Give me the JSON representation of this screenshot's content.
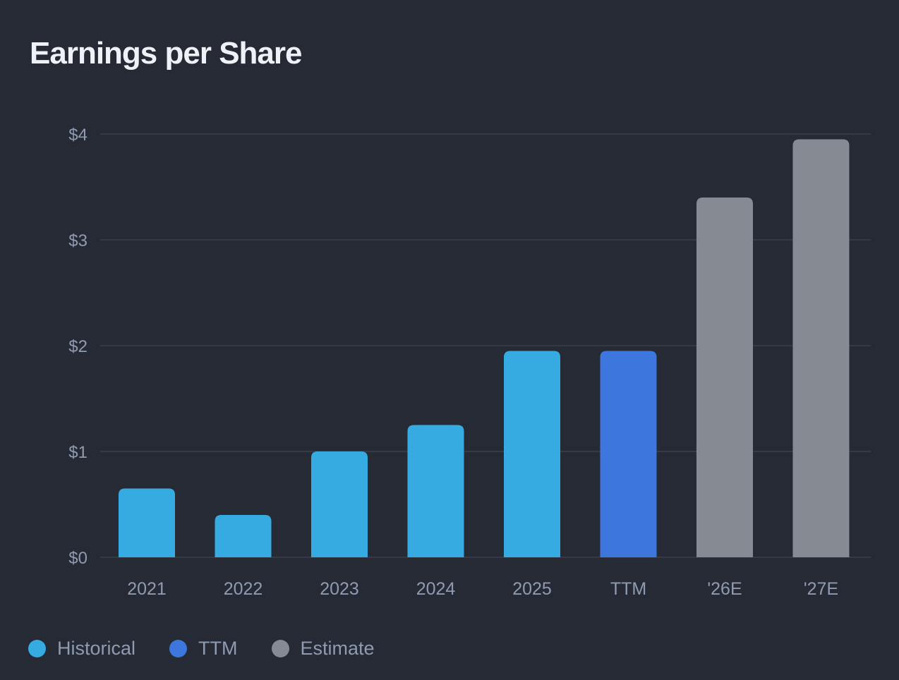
{
  "chart_data": {
    "type": "bar",
    "title": "Earnings per Share",
    "categories": [
      "2021",
      "2022",
      "2023",
      "2024",
      "2025",
      "TTM",
      "'26E",
      "'27E"
    ],
    "values": [
      0.65,
      0.4,
      1.0,
      1.25,
      1.95,
      1.95,
      3.4,
      3.95
    ],
    "groups": [
      "historical",
      "historical",
      "historical",
      "historical",
      "historical",
      "ttm",
      "estimate",
      "estimate"
    ],
    "ylim": [
      0,
      4
    ],
    "yticks": [
      0,
      1,
      2,
      3,
      4
    ],
    "ytick_labels": [
      "$0",
      "$1",
      "$2",
      "$3",
      "$4"
    ],
    "xlabel": "",
    "ylabel": "",
    "grid": true,
    "legend_position": "bottom-left",
    "legend": [
      {
        "key": "historical",
        "label": "Historical",
        "color": "#36abe1"
      },
      {
        "key": "ttm",
        "label": "TTM",
        "color": "#3d77dd"
      },
      {
        "key": "estimate",
        "label": "Estimate",
        "color": "#868a93"
      }
    ]
  },
  "colors": {
    "background": "#262a35",
    "grid": "#3a3f4c",
    "axis_text": "#8f9bb1",
    "title": "#eef1f5"
  }
}
